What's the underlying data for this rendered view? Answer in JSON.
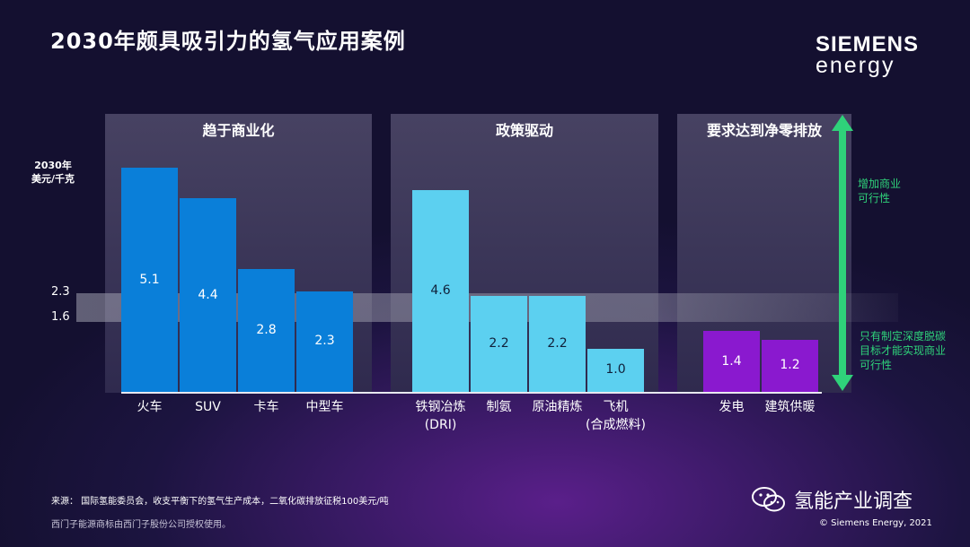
{
  "title": "2030年颇具吸引力的氢气应用案例",
  "logo": {
    "line1": "SIEMENS",
    "line2": "energy"
  },
  "y_axis_label": {
    "line1": "2030年",
    "line2": "美元/千克"
  },
  "reference_lines": [
    {
      "label": "2.3",
      "value": 2.3
    },
    {
      "label": "1.6",
      "value": 1.6
    }
  ],
  "groups": [
    {
      "label": "趋于商业化"
    },
    {
      "label": "政策驱动"
    },
    {
      "label": "要求达到净零排放"
    }
  ],
  "arrow_notes": {
    "up": [
      "增加商业",
      "可行性"
    ],
    "down": [
      "只有制定深度脱碳",
      "目标才能实现商业",
      "可行性"
    ]
  },
  "footer": {
    "source": "来源：  国际氢能委员会，收支平衡下的氢气生产成本，二氧化碳排放征税100美元/吨",
    "trademark": "西门子能源商标由西门子股份公司授权使用。",
    "copyright": "© Siemens Energy, 2021"
  },
  "watermark": {
    "name": "氢能产业调查"
  },
  "colors": {
    "commercial": "#0a7fd9",
    "policy": "#5cd0f0",
    "netzero": "#8a19cf",
    "accent_green": "#2fd27a"
  },
  "chart_data": {
    "type": "bar",
    "title": "2030年颇具吸引力的氢气应用案例",
    "ylabel": "2030年 美元/千克",
    "ylim": [
      0,
      5.1
    ],
    "categories": [
      {
        "name": "火车",
        "sub": "",
        "value": 5.1,
        "group": "趋于商业化",
        "label": "5.1"
      },
      {
        "name": "SUV",
        "sub": "",
        "value": 4.4,
        "group": "趋于商业化",
        "label": "4.4"
      },
      {
        "name": "卡车",
        "sub": "",
        "value": 2.8,
        "group": "趋于商业化",
        "label": "2.8"
      },
      {
        "name": "中型车",
        "sub": "",
        "value": 2.3,
        "group": "趋于商业化",
        "label": "2.3"
      },
      {
        "name": "铁钢冶炼",
        "sub": "(DRI)",
        "value": 4.6,
        "group": "政策驱动",
        "label": "4.6"
      },
      {
        "name": "制氨",
        "sub": "",
        "value": 2.2,
        "group": "政策驱动",
        "label": "2.2"
      },
      {
        "name": "原油精炼",
        "sub": "",
        "value": 2.2,
        "group": "政策驱动",
        "label": "2.2"
      },
      {
        "name": "飞机",
        "sub": "(合成燃料)",
        "value": 1.0,
        "group": "政策驱动",
        "label": "1.0"
      },
      {
        "name": "发电",
        "sub": "",
        "value": 1.4,
        "group": "要求达到净零排放",
        "label": "1.4"
      },
      {
        "name": "建筑供暖",
        "sub": "",
        "value": 1.2,
        "group": "要求达到净零排放",
        "label": "1.2"
      }
    ]
  }
}
